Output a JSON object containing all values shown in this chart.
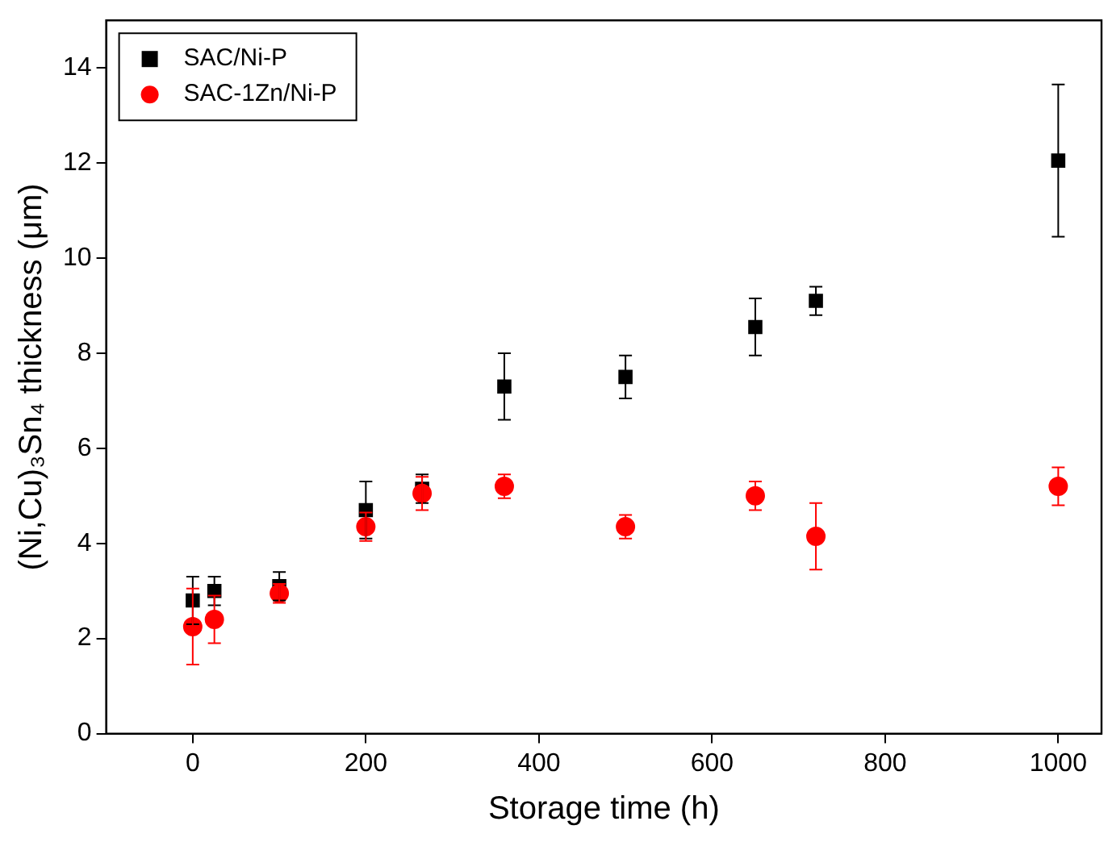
{
  "chart_data": {
    "type": "scatter",
    "xlabel": "Storage time (h)",
    "ylabel": "(Ni,Cu)₃Sn₄ thickness (μm)",
    "xlim": [
      -100,
      1050
    ],
    "xticks": [
      0,
      200,
      400,
      600,
      800,
      1000
    ],
    "ylim": [
      0,
      15
    ],
    "yticks": [
      0,
      2,
      4,
      6,
      8,
      10,
      12,
      14
    ],
    "x": [
      0,
      25,
      100,
      200,
      265,
      360,
      500,
      650,
      720,
      1000
    ],
    "series": [
      {
        "name": "SAC/Ni-P",
        "color": "#000000",
        "marker": "square",
        "values": [
          2.8,
          3.0,
          3.1,
          4.7,
          5.15,
          7.3,
          7.5,
          8.55,
          9.1,
          12.05
        ],
        "errors": [
          0.5,
          0.3,
          0.3,
          0.6,
          0.3,
          0.7,
          0.45,
          0.6,
          0.3,
          1.6
        ]
      },
      {
        "name": "SAC-1Zn/Ni-P",
        "color": "#ff0000",
        "marker": "circle",
        "values": [
          2.25,
          2.4,
          2.95,
          4.35,
          5.05,
          5.2,
          4.35,
          5.0,
          4.15,
          5.2
        ],
        "errors": [
          0.8,
          0.5,
          0.2,
          0.3,
          0.35,
          0.25,
          0.25,
          0.3,
          0.7,
          0.4
        ]
      }
    ],
    "legend": "top left",
    "grid": false
  }
}
